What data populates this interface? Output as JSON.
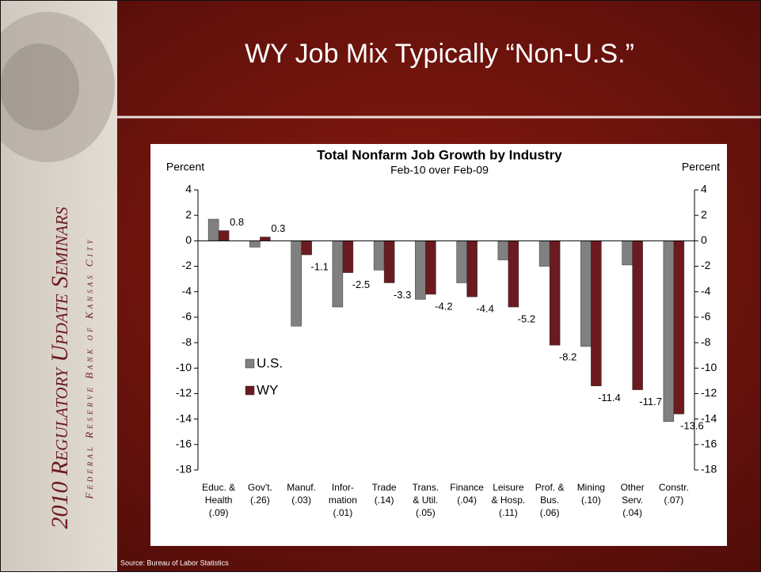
{
  "slide": {
    "title": "WY Job Mix Typically “Non-U.S.”",
    "source": "Source: Bureau of Labor Statistics",
    "sidebar_title": "2010 Regulatory Update Seminars",
    "sidebar_subtitle": "Federal Reserve Bank of Kansas City"
  },
  "chart_data": {
    "type": "bar",
    "title": "Total Nonfarm Job Growth by Industry",
    "subtitle": "Feb-10 over Feb-09",
    "y_label": "Percent",
    "y2_label": "Percent",
    "categories": [
      [
        "Educ. &",
        "Health",
        "(.09)"
      ],
      [
        "Gov't.",
        "(.26)"
      ],
      [
        "Manuf.",
        "(.03)"
      ],
      [
        "Infor-",
        "mation",
        "(.01)"
      ],
      [
        "Trade",
        "(.14)"
      ],
      [
        "Trans.",
        "& Util.",
        "(.05)"
      ],
      [
        "Finance",
        "(.04)"
      ],
      [
        "Leisure",
        "& Hosp.",
        "(.11)"
      ],
      [
        "Prof. &",
        "Bus.",
        "(.06)"
      ],
      [
        "Mining",
        "(.10)"
      ],
      [
        "Other",
        "Serv.",
        "(.04)"
      ],
      [
        "Constr.",
        "(.07)"
      ]
    ],
    "series": [
      {
        "name": "U.S.",
        "color": "#808080",
        "values": [
          1.7,
          -0.5,
          -6.7,
          -5.2,
          -2.3,
          -4.6,
          -3.3,
          -1.5,
          -2.0,
          -8.3,
          -1.9,
          -14.2
        ]
      },
      {
        "name": "WY",
        "color": "#6b1a1f",
        "values": [
          0.8,
          0.3,
          -1.1,
          -2.5,
          -3.3,
          -4.2,
          -4.4,
          -5.2,
          -8.2,
          -11.4,
          -11.7,
          -13.6
        ],
        "show_labels": true
      }
    ],
    "ylim": [
      -18,
      4
    ],
    "yticks": [
      -18,
      -16,
      -14,
      -12,
      -10,
      -8,
      -6,
      -4,
      -2,
      0,
      2,
      4
    ],
    "y2lim": [
      -18,
      4
    ],
    "y2ticks": [
      -18,
      -16,
      -14,
      -12,
      -10,
      -8,
      -6,
      -4,
      -2,
      0,
      2,
      4
    ],
    "grid": false,
    "legend": "center-left"
  }
}
